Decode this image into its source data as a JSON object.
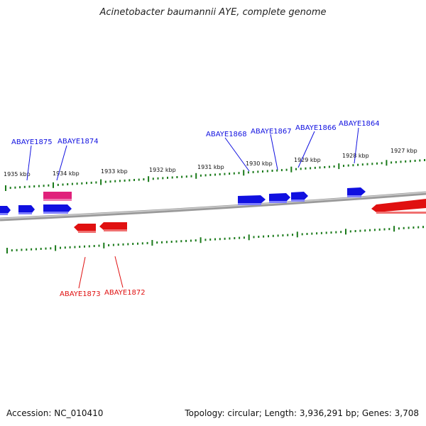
{
  "header": {
    "title": "Acinetobacter baumannii AYE, complete genome"
  },
  "footer": {
    "accession": "Accession: NC_010410",
    "summary": "Topology: circular; Length: 3,936,291 bp; Genes: 3,708"
  },
  "colors": {
    "forward_gene": "#1010e0",
    "reverse_gene": "#e01010",
    "highlight_gene": "#e0207a",
    "tick": "#1a7a1a",
    "backbone": "#808080"
  },
  "ticks_top": [
    {
      "label": "1935 kbp"
    },
    {
      "label": "1934 kbp"
    },
    {
      "label": "1933 kbp"
    },
    {
      "label": "1932 kbp"
    },
    {
      "label": "1931 kbp"
    },
    {
      "label": "1930 kbp"
    },
    {
      "label": "1929 kbp"
    },
    {
      "label": "1928 kbp"
    },
    {
      "label": "1927 kbp"
    }
  ],
  "labels_forward": [
    {
      "name": "ABAYE1875"
    },
    {
      "name": "ABAYE1874"
    },
    {
      "name": "ABAYE1868"
    },
    {
      "name": "ABAYE1867"
    },
    {
      "name": "ABAYE1866"
    },
    {
      "name": "ABAYE1864"
    }
  ],
  "labels_reverse": [
    {
      "name": "ABAYE1873"
    },
    {
      "name": "ABAYE1872"
    }
  ]
}
